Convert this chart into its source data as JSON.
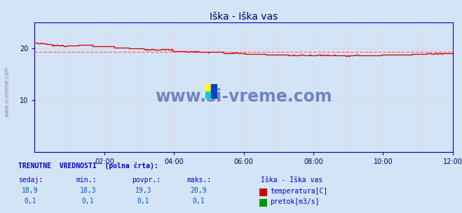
{
  "title": "Iška - Iška vas",
  "title_color": "#000066",
  "bg_color": "#d4e4f7",
  "plot_bg_color": "#d4e4f7",
  "grid_color_v": "#aaaadd",
  "grid_color_h": "#ffaaaa",
  "x_min": 0,
  "x_max": 288,
  "x_ticks_labels": [
    "02:00",
    "04:00",
    "06:00",
    "08:00",
    "10:00",
    "12:00"
  ],
  "x_tick_positions": [
    48,
    96,
    144,
    192,
    240,
    288
  ],
  "y_min": 0,
  "y_max": 25,
  "y_ticks": [
    10,
    20
  ],
  "temp_avg": 19.3,
  "temp_min": 18.3,
  "temp_max": 20.9,
  "temp_current": 18.9,
  "flow_current": 0.1,
  "flow_min": 0.1,
  "flow_max": 0.1,
  "flow_avg": 0.1,
  "temp_line_color": "#cc0000",
  "temp_avg_line_color": "#ff6666",
  "flow_line_color": "#009900",
  "axis_color": "#0000aa",
  "tick_color": "#000055",
  "table_header_color": "#0000cc",
  "table_value_color": "#0055cc",
  "left_label": "www.si-vreme.com",
  "left_label_color": "#8888aa",
  "watermark_text_color": "#1a3a99",
  "spine_color": "#0000cc"
}
